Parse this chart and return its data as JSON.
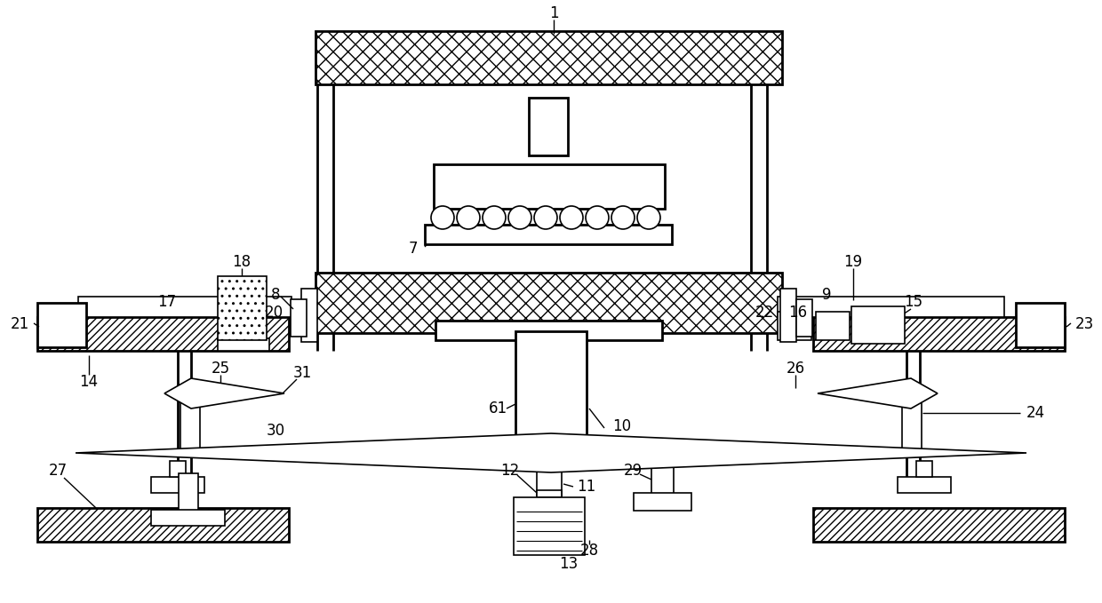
{
  "bg_color": "#ffffff",
  "fig_width": 12.4,
  "fig_height": 6.79,
  "dpi": 100
}
